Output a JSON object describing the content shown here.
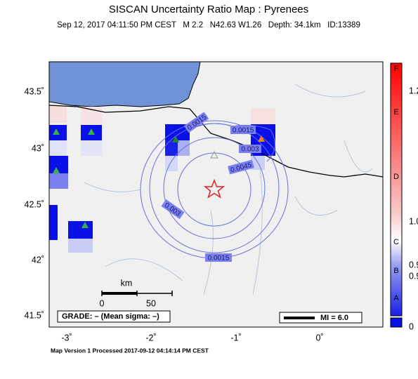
{
  "header": {
    "title": "SISCAN Uncertainty Ratio Map : Pyrenees",
    "subtitle": "Sep 12, 2017 04:11:50 PM CEST   M 2.2   N42.63 W1.26   Depth: 34.1km   ID:13389"
  },
  "map": {
    "lat_labels": [
      "43.5˚",
      "43˚",
      "42.5˚",
      "42˚",
      "41.5˚"
    ],
    "lon_labels": [
      "-3˚",
      "-2˚",
      "-1˚",
      "0˚"
    ],
    "contour_labels": [
      "0.0015",
      "0.0015",
      "0.003",
      "0.0045",
      "0.003",
      "0.0015"
    ],
    "scale": {
      "unit": "km",
      "ticks": [
        "0",
        "50"
      ]
    },
    "grade": "GRADE: – (Mean sigma: –)",
    "mi": "MI = 6.0"
  },
  "colorbar": {
    "letters": [
      "F",
      "E",
      "D",
      "C",
      "B",
      "A"
    ],
    "values": [
      "1.2",
      "1.0",
      "0.9",
      "0.9",
      "0"
    ]
  },
  "footer": "Map Version 1 Processed 2017-09-12 04:14:14 PM CEST"
}
